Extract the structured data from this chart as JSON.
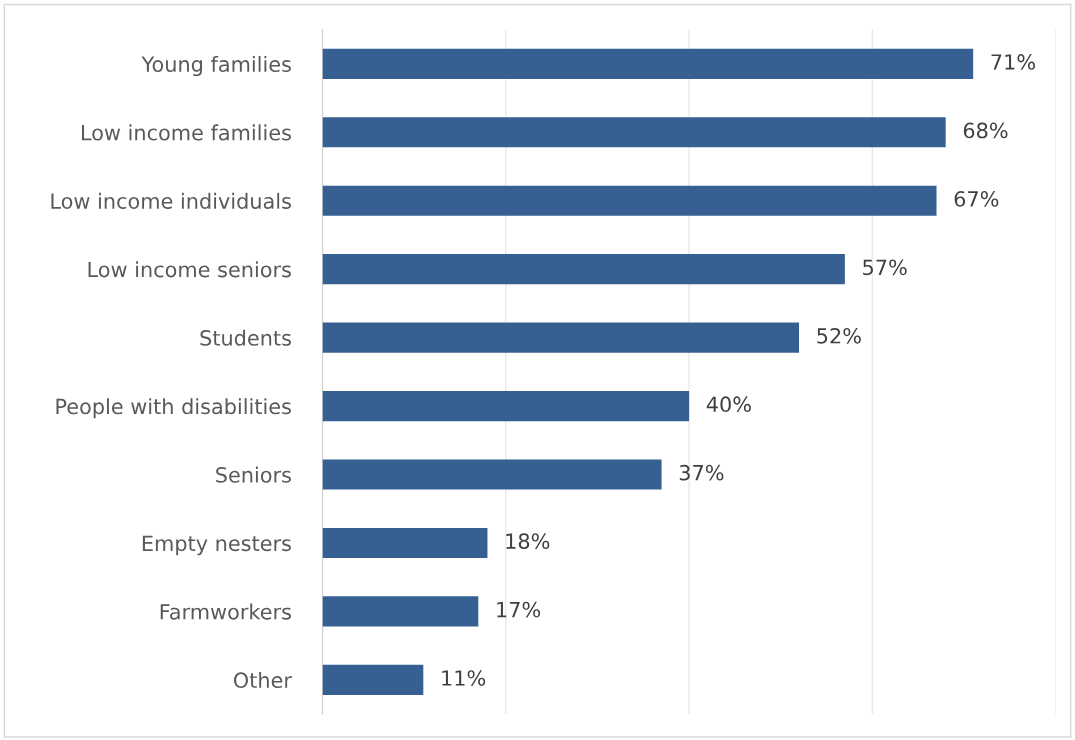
{
  "chart_data": {
    "type": "bar",
    "orientation": "horizontal",
    "categories": [
      "Young families",
      "Low income families",
      "Low income individuals",
      "Low income seniors",
      "Students",
      "People with disabilities",
      "Seniors",
      "Empty nesters",
      "Farmworkers",
      "Other"
    ],
    "values": [
      71,
      68,
      67,
      57,
      52,
      40,
      37,
      18,
      17,
      11
    ],
    "value_labels": [
      "71%",
      "68%",
      "67%",
      "57%",
      "52%",
      "40%",
      "37%",
      "18%",
      "17%",
      "11%"
    ],
    "color": "#376092",
    "xlim": [
      0,
      80
    ],
    "xticks": [
      {
        "value": 0,
        "label": null
      },
      {
        "value": 20,
        "label": null
      },
      {
        "value": 40,
        "label": null
      },
      {
        "value": 60,
        "label": null
      },
      {
        "value": 80,
        "label": null
      }
    ],
    "tick_labels": "y",
    "grid": "x",
    "legend": false
  }
}
